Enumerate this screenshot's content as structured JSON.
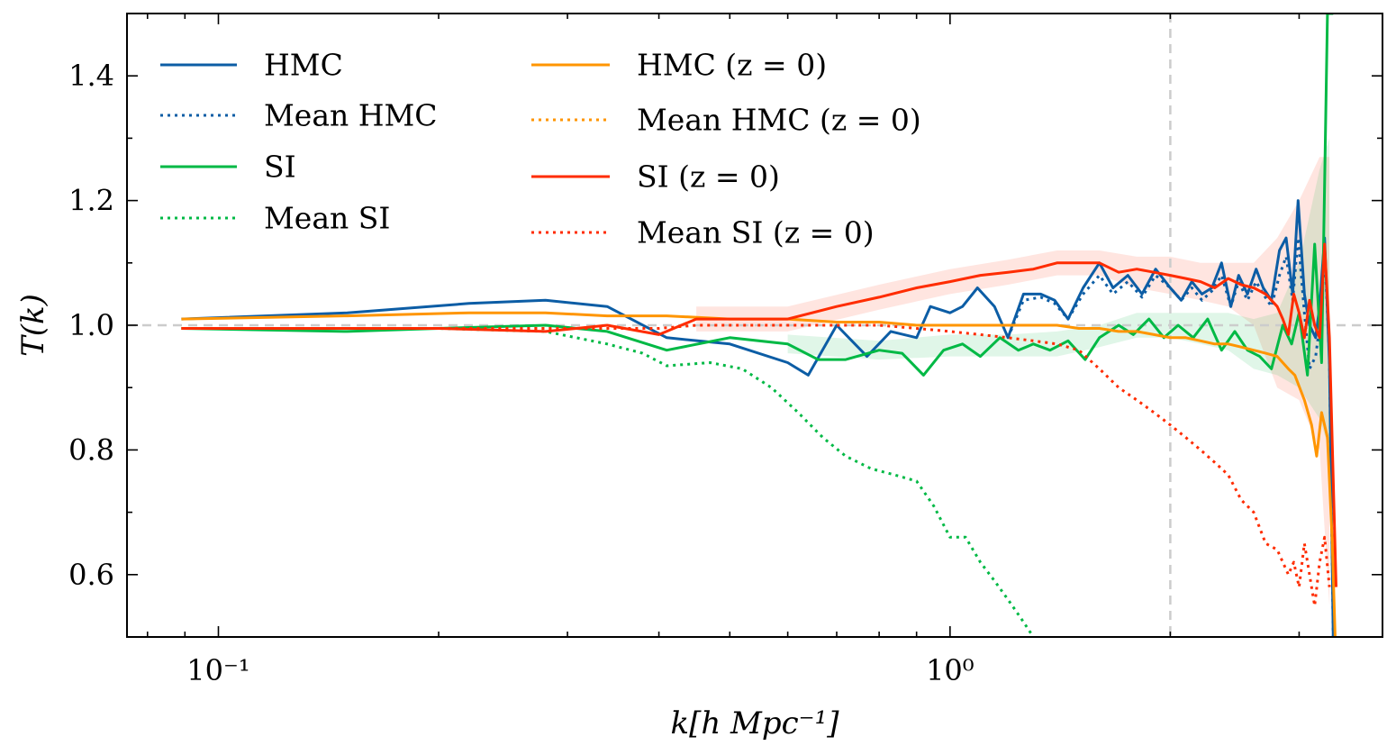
{
  "chart_data": {
    "type": "line",
    "title": "",
    "xlabel": "k[h  Mpc⁻¹]",
    "ylabel": "T(k)",
    "xscale": "log",
    "xlim": [
      0.075,
      3.9
    ],
    "ylim": [
      0.5,
      1.5
    ],
    "xticks": [
      {
        "value": 0.1,
        "label": "10⁻¹"
      },
      {
        "value": 1.0,
        "label": "10⁰"
      }
    ],
    "yticks": [
      {
        "value": 0.6,
        "label": "0.6"
      },
      {
        "value": 0.8,
        "label": "0.8"
      },
      {
        "value": 1.0,
        "label": "1.0"
      },
      {
        "value": 1.2,
        "label": "1.2"
      },
      {
        "value": 1.4,
        "label": "1.4"
      }
    ],
    "reference_lines": {
      "y": 1.0,
      "x": 2.0,
      "color": "#cccccc",
      "style": "dashed"
    },
    "legend": {
      "placement": "top-left",
      "columns": 2
    },
    "series": [
      {
        "name": "HMC",
        "color": "#0C5DA5",
        "style": "solid",
        "x": [
          0.089,
          0.15,
          0.22,
          0.28,
          0.34,
          0.41,
          0.5,
          0.6,
          0.64,
          0.7,
          0.77,
          0.83,
          0.9,
          0.94,
          1.0,
          1.04,
          1.09,
          1.15,
          1.2,
          1.26,
          1.33,
          1.39,
          1.45,
          1.52,
          1.6,
          1.67,
          1.75,
          1.83,
          1.91,
          2.0,
          2.07,
          2.14,
          2.21,
          2.28,
          2.35,
          2.42,
          2.48,
          2.55,
          2.62,
          2.68,
          2.75,
          2.82,
          2.88,
          2.94,
          2.99,
          3.05,
          3.1,
          3.16,
          3.2,
          3.25,
          3.3,
          3.34
        ],
        "y": [
          1.01,
          1.02,
          1.035,
          1.04,
          1.03,
          0.98,
          0.97,
          0.94,
          0.92,
          1.0,
          0.95,
          0.99,
          0.98,
          1.03,
          1.02,
          1.03,
          1.06,
          1.03,
          0.98,
          1.05,
          1.05,
          1.04,
          1.01,
          1.06,
          1.1,
          1.06,
          1.08,
          1.05,
          1.09,
          1.06,
          1.04,
          1.07,
          1.05,
          1.06,
          1.1,
          1.03,
          1.08,
          1.05,
          1.09,
          1.06,
          1.04,
          1.12,
          1.14,
          1.05,
          1.2,
          1.05,
          1.0,
          0.98,
          1.03,
          1.14,
          0.94,
          0.5
        ]
      },
      {
        "name": "Mean HMC",
        "color": "#0C5DA5",
        "style": "dotted",
        "x": [
          1.2,
          1.26,
          1.33,
          1.39,
          1.45,
          1.52,
          1.6,
          1.67,
          1.75,
          1.83,
          1.91,
          2.0,
          2.07,
          2.14,
          2.21,
          2.28,
          2.35,
          2.42,
          2.48,
          2.55,
          2.62,
          2.68,
          2.75,
          2.82,
          2.88,
          2.94,
          2.99,
          3.05,
          3.1,
          3.16,
          3.2,
          3.25,
          3.3,
          3.34
        ],
        "y": [
          0.98,
          1.04,
          1.045,
          1.035,
          1.01,
          1.05,
          1.08,
          1.05,
          1.07,
          1.045,
          1.08,
          1.06,
          1.04,
          1.06,
          1.04,
          1.055,
          1.08,
          1.03,
          1.07,
          1.04,
          1.07,
          1.05,
          1.03,
          1.08,
          1.11,
          1.04,
          1.14,
          1.02,
          0.93,
          0.95,
          1.0,
          1.12,
          0.95,
          0.5
        ]
      },
      {
        "name": "SI",
        "color": "#00B945",
        "style": "solid",
        "x": [
          0.089,
          0.15,
          0.2,
          0.28,
          0.34,
          0.41,
          0.5,
          0.6,
          0.66,
          0.72,
          0.8,
          0.86,
          0.92,
          0.98,
          1.04,
          1.1,
          1.17,
          1.24,
          1.3,
          1.37,
          1.45,
          1.53,
          1.6,
          1.7,
          1.78,
          1.87,
          1.96,
          2.05,
          2.15,
          2.25,
          2.35,
          2.45,
          2.55,
          2.65,
          2.75,
          2.85,
          2.93,
          3.0,
          3.08,
          3.15,
          3.22,
          3.28,
          3.34
        ],
        "y": [
          0.995,
          0.99,
          0.995,
          1.0,
          0.99,
          0.96,
          0.98,
          0.97,
          0.945,
          0.945,
          0.96,
          0.955,
          0.92,
          0.96,
          0.97,
          0.95,
          0.98,
          0.96,
          0.97,
          0.96,
          0.975,
          0.945,
          0.98,
          1.0,
          0.985,
          1.01,
          0.98,
          1.0,
          0.98,
          1.01,
          0.96,
          0.99,
          0.96,
          0.95,
          0.93,
          1.0,
          0.97,
          1.02,
          0.92,
          1.13,
          0.94,
          1.5,
          1.5
        ]
      },
      {
        "name": "Mean SI",
        "color": "#00B945",
        "style": "dotted",
        "x": [
          0.089,
          0.2,
          0.28,
          0.34,
          0.38,
          0.41,
          0.47,
          0.52,
          0.57,
          0.62,
          0.67,
          0.72,
          0.78,
          0.84,
          0.9,
          0.95,
          1.0,
          1.05,
          1.1,
          1.15,
          1.2,
          1.25,
          1.3
        ],
        "y": [
          0.995,
          0.995,
          0.99,
          0.97,
          0.955,
          0.935,
          0.94,
          0.93,
          0.9,
          0.86,
          0.82,
          0.79,
          0.77,
          0.76,
          0.75,
          0.71,
          0.66,
          0.66,
          0.62,
          0.59,
          0.56,
          0.53,
          0.5
        ]
      },
      {
        "name": "HMC (z = 0)",
        "color": "#FF9500",
        "style": "solid",
        "x": [
          0.089,
          0.15,
          0.22,
          0.28,
          0.34,
          0.41,
          0.5,
          0.6,
          0.7,
          0.8,
          0.9,
          1.0,
          1.1,
          1.2,
          1.3,
          1.4,
          1.5,
          1.6,
          1.7,
          1.8,
          1.9,
          2.0,
          2.1,
          2.2,
          2.3,
          2.4,
          2.5,
          2.6,
          2.7,
          2.8,
          2.9,
          2.96,
          3.05,
          3.12,
          3.17,
          3.22,
          3.28,
          3.33,
          3.36
        ],
        "y": [
          1.01,
          1.015,
          1.02,
          1.02,
          1.015,
          1.015,
          1.01,
          1.01,
          1.005,
          1.005,
          1.0,
          1.0,
          1.0,
          1.0,
          1.0,
          1.0,
          0.995,
          0.995,
          0.99,
          0.99,
          0.985,
          0.98,
          0.98,
          0.975,
          0.97,
          0.97,
          0.965,
          0.96,
          0.955,
          0.95,
          0.93,
          0.92,
          0.88,
          0.84,
          0.79,
          0.86,
          0.82,
          0.65,
          0.5
        ]
      },
      {
        "name": "Mean HMC (z = 0)",
        "color": "#FF9500",
        "style": "dotted",
        "x": [
          0.089,
          0.2,
          0.3
        ],
        "y": [
          0.995,
          0.995,
          0.995
        ]
      },
      {
        "name": "SI (z = 0)",
        "color": "#FF2C00",
        "style": "solid",
        "x": [
          0.089,
          0.15,
          0.2,
          0.28,
          0.34,
          0.4,
          0.45,
          0.5,
          0.6,
          0.7,
          0.8,
          0.9,
          1.0,
          1.1,
          1.2,
          1.3,
          1.4,
          1.5,
          1.6,
          1.7,
          1.8,
          1.9,
          2.0,
          2.1,
          2.2,
          2.3,
          2.4,
          2.5,
          2.6,
          2.7,
          2.8,
          2.85,
          2.9,
          2.95,
          3.0,
          3.05,
          3.1,
          3.15,
          3.2,
          3.25,
          3.3,
          3.37
        ],
        "y": [
          0.995,
          0.995,
          0.995,
          0.99,
          1.0,
          0.985,
          1.01,
          1.01,
          1.01,
          1.03,
          1.045,
          1.06,
          1.07,
          1.08,
          1.085,
          1.09,
          1.1,
          1.1,
          1.1,
          1.085,
          1.09,
          1.085,
          1.08,
          1.075,
          1.07,
          1.06,
          1.075,
          1.065,
          1.06,
          1.05,
          1.03,
          1.01,
          0.985,
          1.05,
          1.02,
          0.98,
          1.04,
          1.0,
          0.98,
          1.13,
          0.98,
          0.58
        ]
      },
      {
        "name": "Mean SI (z = 0)",
        "color": "#FF2C00",
        "style": "dotted",
        "x": [
          0.089,
          0.3,
          0.4,
          0.45,
          0.5,
          0.6,
          0.7,
          0.8,
          0.9,
          1.0,
          1.1,
          1.2,
          1.3,
          1.4,
          1.5,
          1.6,
          1.7,
          1.8,
          1.9,
          2.0,
          2.1,
          2.2,
          2.3,
          2.4,
          2.5,
          2.6,
          2.7,
          2.8,
          2.9,
          2.95,
          3.0,
          3.05,
          3.1,
          3.15,
          3.2,
          3.25,
          3.3
        ],
        "y": [
          0.995,
          0.995,
          0.995,
          1.0,
          1.0,
          1.0,
          1.0,
          1.0,
          0.995,
          0.99,
          0.985,
          0.98,
          0.975,
          0.97,
          0.96,
          0.93,
          0.9,
          0.88,
          0.86,
          0.84,
          0.82,
          0.8,
          0.78,
          0.76,
          0.72,
          0.7,
          0.65,
          0.64,
          0.6,
          0.62,
          0.58,
          0.65,
          0.6,
          0.55,
          0.62,
          0.66,
          0.58
        ]
      }
    ],
    "bands": [
      {
        "series": "SI (z = 0)",
        "color": "#FF2C00",
        "opacity": 0.12,
        "x": [
          0.45,
          0.6,
          0.8,
          1.0,
          1.2,
          1.4,
          1.6,
          1.8,
          2.0,
          2.2,
          2.4,
          2.6,
          2.8,
          3.0,
          3.2,
          3.3
        ],
        "lower": [
          0.99,
          0.99,
          1.025,
          1.05,
          1.065,
          1.08,
          1.08,
          1.06,
          1.05,
          1.04,
          1.03,
          1.0,
          0.9,
          0.88,
          0.8,
          0.55
        ],
        "upper": [
          1.03,
          1.03,
          1.065,
          1.09,
          1.105,
          1.12,
          1.12,
          1.11,
          1.11,
          1.1,
          1.1,
          1.1,
          1.14,
          1.2,
          1.27,
          1.27
        ]
      },
      {
        "series": "SI",
        "color": "#00B945",
        "opacity": 0.12,
        "x": [
          0.6,
          0.8,
          1.0,
          1.2,
          1.4,
          1.6,
          1.8,
          2.0,
          2.2,
          2.4,
          2.6,
          2.8,
          3.0,
          3.2,
          3.3
        ],
        "lower": [
          0.955,
          0.945,
          0.95,
          0.95,
          0.95,
          0.965,
          0.98,
          0.98,
          0.97,
          0.96,
          0.93,
          0.92,
          0.9,
          0.85,
          0.8
        ],
        "upper": [
          0.985,
          0.975,
          0.985,
          0.985,
          0.99,
          1.0,
          1.02,
          1.02,
          1.02,
          1.02,
          1.01,
          1.02,
          1.1,
          1.25,
          1.3
        ]
      }
    ]
  }
}
